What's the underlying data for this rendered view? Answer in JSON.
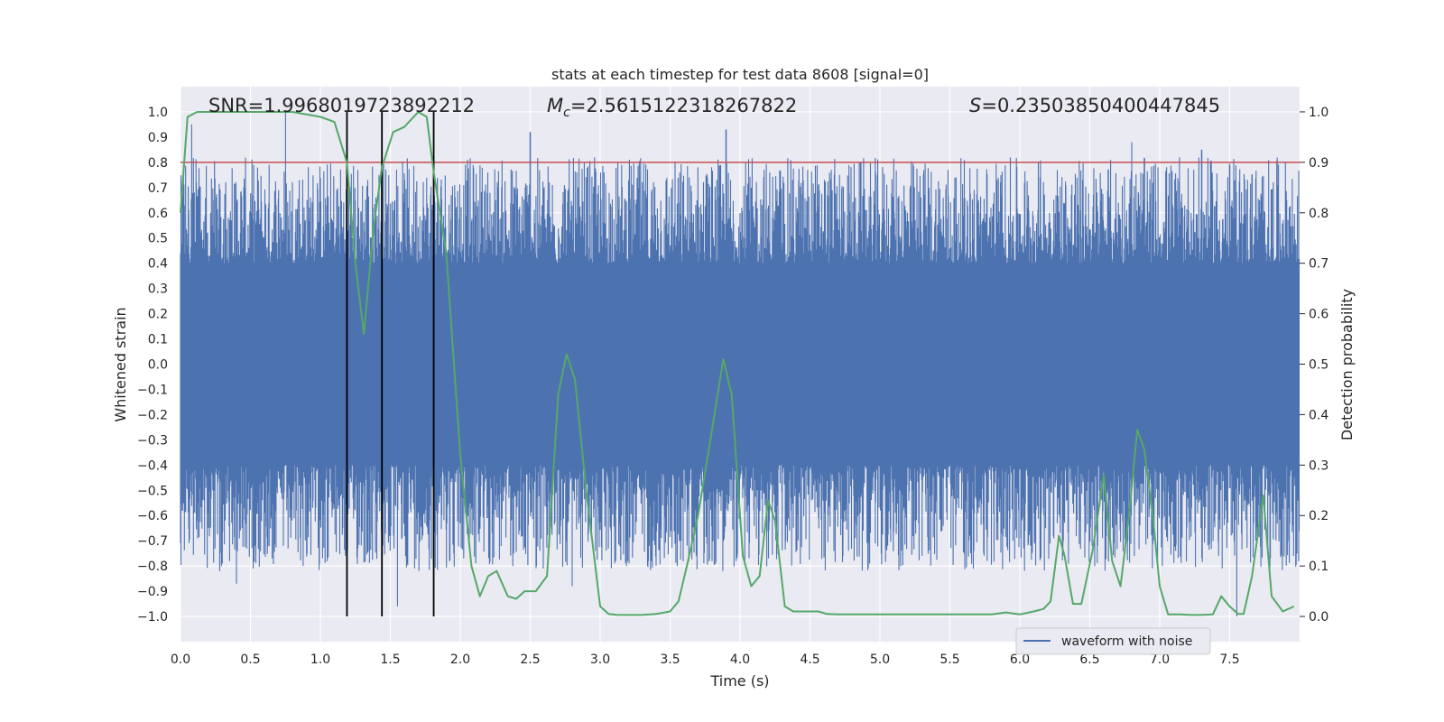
{
  "chart_data": {
    "type": "line",
    "title": "stats at each timestep for test data 8608 [signal=0]",
    "xlabel": "Time (s)",
    "ylabel": "Whitened strain",
    "y2label": "Detection probability",
    "xlim": [
      0.0,
      8.0
    ],
    "ylim": [
      -1.1,
      1.1
    ],
    "y2lim": [
      -0.05,
      1.05
    ],
    "xticks": [
      "0.0",
      "0.5",
      "1.0",
      "1.5",
      "2.0",
      "2.5",
      "3.0",
      "3.5",
      "4.0",
      "4.5",
      "5.0",
      "5.5",
      "6.0",
      "6.5",
      "7.0",
      "7.5"
    ],
    "yticks": [
      "1.0",
      "0.9",
      "0.8",
      "0.7",
      "0.6",
      "0.5",
      "0.4",
      "0.3",
      "0.2",
      "0.1",
      "0.0",
      "−0.1",
      "−0.2",
      "−0.3",
      "−0.4",
      "−0.5",
      "−0.6",
      "−0.7",
      "−0.8",
      "−0.9",
      "−1.0"
    ],
    "y2ticks": [
      "1.0",
      "0.9",
      "0.8",
      "0.7",
      "0.6",
      "0.5",
      "0.4",
      "0.3",
      "0.2",
      "0.1",
      "0.0"
    ],
    "grid": true,
    "legend": {
      "placement": "lower-right",
      "entries": [
        "waveform with noise"
      ]
    },
    "annotations": {
      "snr": "SNR=1.9968019723892212",
      "mc_symbol": "M",
      "mc_sub": "c",
      "mc_value": "=2.5615122318267822",
      "s_symbol": "S",
      "s_value": "=0.23503850400447845"
    },
    "threshold_line": {
      "axis": "right",
      "value": 0.9,
      "color": "#c44e52"
    },
    "vertical_lines": {
      "x": [
        1.19,
        1.44,
        1.81
      ],
      "ymin": -1.0,
      "ymax": 1.0,
      "color": "#000000"
    },
    "series": [
      {
        "name": "waveform with noise",
        "axis": "left",
        "color": "#4c72b0",
        "description_envelope": {
          "core_amplitude": 0.4,
          "upper_peak_times": [
            0.75,
            0.08,
            2.5,
            3.9,
            6.8,
            7.3
          ],
          "upper_peak_values": [
            1.0,
            0.95,
            0.92,
            0.93,
            0.88,
            0.85
          ],
          "lower_peak_times": [
            0.4,
            1.55,
            2.8,
            7.55
          ],
          "lower_peak_values": [
            -0.87,
            -0.96,
            -0.88,
            -1.0
          ]
        }
      },
      {
        "name": "detection probability",
        "axis": "right",
        "color": "#55a868",
        "x": [
          0.0,
          0.05,
          0.12,
          0.2,
          0.4,
          0.6,
          0.8,
          1.0,
          1.1,
          1.19,
          1.25,
          1.31,
          1.38,
          1.44,
          1.52,
          1.6,
          1.7,
          1.76,
          1.81,
          1.9,
          2.0,
          2.08,
          2.14,
          2.2,
          2.26,
          2.34,
          2.4,
          2.46,
          2.54,
          2.62,
          2.7,
          2.76,
          2.82,
          2.9,
          3.0,
          3.06,
          3.12,
          3.2,
          3.3,
          3.4,
          3.5,
          3.56,
          3.62,
          3.7,
          3.8,
          3.88,
          3.94,
          4.02,
          4.08,
          4.14,
          4.2,
          4.25,
          4.32,
          4.38,
          4.44,
          4.5,
          4.56,
          4.62,
          4.7,
          4.8,
          5.0,
          5.2,
          5.4,
          5.6,
          5.8,
          5.9,
          6.0,
          6.1,
          6.17,
          6.22,
          6.28,
          6.32,
          6.38,
          6.44,
          6.52,
          6.6,
          6.66,
          6.72,
          6.78,
          6.84,
          6.89,
          6.95,
          7.0,
          7.06,
          7.14,
          7.22,
          7.3,
          7.38,
          7.44,
          7.5,
          7.56,
          7.6,
          7.66,
          7.74,
          7.8,
          7.88,
          7.96
        ],
        "y": [
          0.8,
          0.99,
          1.0,
          1.0,
          1.0,
          1.0,
          1.0,
          0.99,
          0.98,
          0.9,
          0.7,
          0.56,
          0.77,
          0.89,
          0.96,
          0.97,
          1.0,
          0.99,
          0.88,
          0.72,
          0.32,
          0.1,
          0.04,
          0.08,
          0.09,
          0.04,
          0.035,
          0.05,
          0.05,
          0.08,
          0.44,
          0.52,
          0.47,
          0.25,
          0.02,
          0.005,
          0.003,
          0.003,
          0.003,
          0.005,
          0.01,
          0.03,
          0.1,
          0.2,
          0.37,
          0.51,
          0.44,
          0.12,
          0.06,
          0.08,
          0.23,
          0.19,
          0.02,
          0.01,
          0.01,
          0.01,
          0.01,
          0.005,
          0.004,
          0.004,
          0.004,
          0.004,
          0.004,
          0.004,
          0.004,
          0.008,
          0.004,
          0.01,
          0.015,
          0.03,
          0.16,
          0.12,
          0.025,
          0.025,
          0.13,
          0.28,
          0.11,
          0.06,
          0.2,
          0.37,
          0.33,
          0.2,
          0.06,
          0.004,
          0.004,
          0.003,
          0.003,
          0.004,
          0.04,
          0.02,
          0.005,
          0.005,
          0.08,
          0.24,
          0.04,
          0.01,
          0.02
        ]
      }
    ]
  }
}
